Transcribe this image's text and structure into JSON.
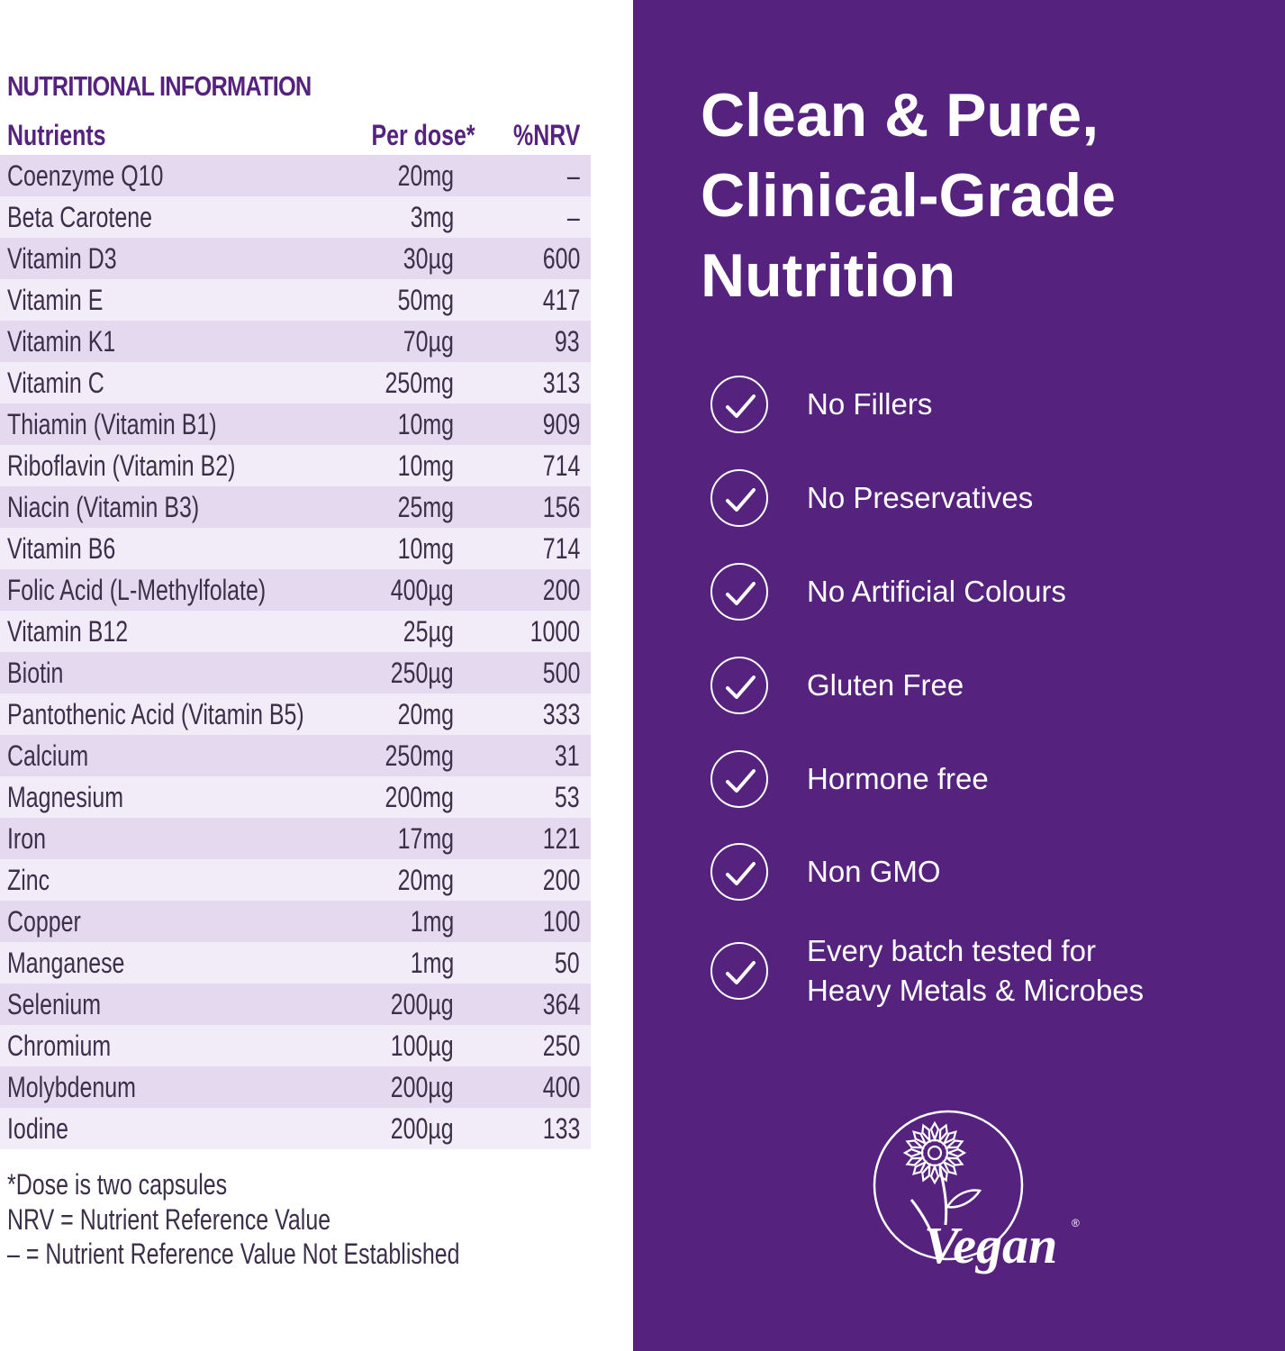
{
  "nutrition": {
    "section_title": "NUTRITIONAL INFORMATION",
    "headers": {
      "nutrient": "Nutrients",
      "per_dose": "Per dose*",
      "nrv": "%NRV"
    },
    "rows": [
      {
        "nutrient": "Coenzyme Q10",
        "per_dose": "20mg",
        "nrv": "–"
      },
      {
        "nutrient": "Beta Carotene",
        "per_dose": "3mg",
        "nrv": "–"
      },
      {
        "nutrient": "Vitamin D3",
        "per_dose": "30µg",
        "nrv": "600"
      },
      {
        "nutrient": "Vitamin E",
        "per_dose": "50mg",
        "nrv": "417"
      },
      {
        "nutrient": "Vitamin K1",
        "per_dose": "70µg",
        "nrv": "93"
      },
      {
        "nutrient": "Vitamin C",
        "per_dose": "250mg",
        "nrv": "313"
      },
      {
        "nutrient": "Thiamin (Vitamin B1)",
        "per_dose": "10mg",
        "nrv": "909"
      },
      {
        "nutrient": "Riboflavin (Vitamin B2)",
        "per_dose": "10mg",
        "nrv": "714"
      },
      {
        "nutrient": "Niacin (Vitamin B3)",
        "per_dose": "25mg",
        "nrv": "156"
      },
      {
        "nutrient": "Vitamin B6",
        "per_dose": "10mg",
        "nrv": "714"
      },
      {
        "nutrient": "Folic Acid (L-Methylfolate)",
        "per_dose": "400µg",
        "nrv": "200"
      },
      {
        "nutrient": "Vitamin B12",
        "per_dose": "25µg",
        "nrv": "1000"
      },
      {
        "nutrient": "Biotin",
        "per_dose": "250µg",
        "nrv": "500"
      },
      {
        "nutrient": "Pantothenic Acid (Vitamin B5)",
        "per_dose": "20mg",
        "nrv": "333"
      },
      {
        "nutrient": "Calcium",
        "per_dose": "250mg",
        "nrv": "31"
      },
      {
        "nutrient": "Magnesium",
        "per_dose": "200mg",
        "nrv": "53"
      },
      {
        "nutrient": "Iron",
        "per_dose": "17mg",
        "nrv": "121"
      },
      {
        "nutrient": "Zinc",
        "per_dose": "20mg",
        "nrv": "200"
      },
      {
        "nutrient": "Copper",
        "per_dose": "1mg",
        "nrv": "100"
      },
      {
        "nutrient": "Manganese",
        "per_dose": "1mg",
        "nrv": "50"
      },
      {
        "nutrient": "Selenium",
        "per_dose": "200µg",
        "nrv": "364"
      },
      {
        "nutrient": "Chromium",
        "per_dose": "100µg",
        "nrv": "250"
      },
      {
        "nutrient": "Molybdenum",
        "per_dose": "200µg",
        "nrv": "400"
      },
      {
        "nutrient": "Iodine",
        "per_dose": "200µg",
        "nrv": "133"
      }
    ],
    "footnotes": [
      "*Dose is two capsules",
      "NRV = Nutrient Reference Value",
      "– = Nutrient Reference Value Not Established"
    ]
  },
  "promo": {
    "headline": [
      "Clean & Pure,",
      "Clinical-Grade",
      "Nutrition"
    ],
    "features": [
      [
        "No Fillers"
      ],
      [
        "No Preservatives"
      ],
      [
        "No Artificial Colours"
      ],
      [
        "Gluten Free"
      ],
      [
        "Hormone free"
      ],
      [
        "Non GMO"
      ],
      [
        "Every batch tested for",
        "Heavy Metals & Microbes"
      ]
    ],
    "logo_text": "Vegan",
    "logo_mark": "®"
  },
  "colors": {
    "brand_purple": "#55237e",
    "row_odd": "#e4d9ef",
    "row_even": "#f2ecf8",
    "text_dark": "#3c2f49"
  }
}
